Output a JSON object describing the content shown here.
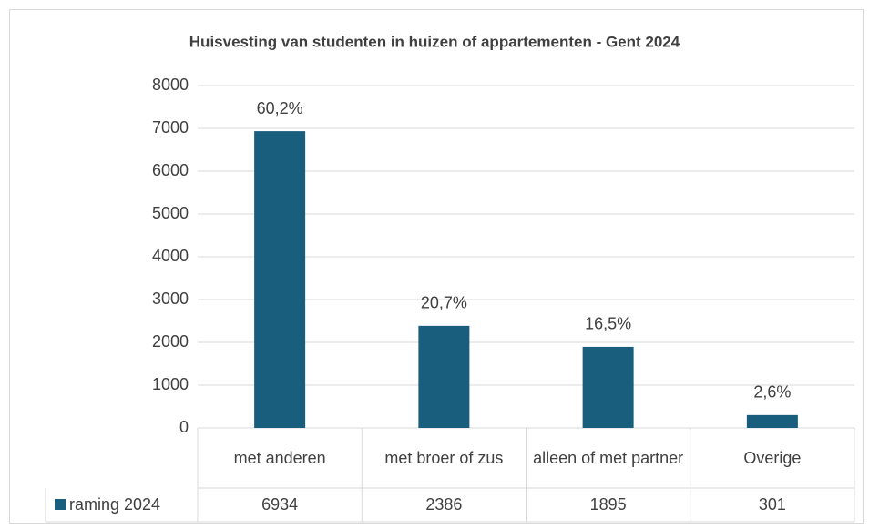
{
  "chart_data": {
    "type": "bar",
    "title": "Huisvesting van studenten in huizen of appartementen  - Gent 2024",
    "categories": [
      "met anderen",
      "met broer of zus",
      "alleen of met partner",
      "Overige"
    ],
    "series": [
      {
        "name": "raming 2024",
        "color": "#1a5e7e",
        "values": [
          6934,
          2386,
          1895,
          301
        ],
        "value_labels": [
          "60,2%",
          "20,7%",
          "16,5%",
          "2,6%"
        ]
      }
    ],
    "ylim": [
      0,
      8000
    ],
    "yticks": [
      0,
      1000,
      2000,
      3000,
      4000,
      5000,
      6000,
      7000,
      8000
    ],
    "grid": true,
    "legend": "bottom"
  }
}
